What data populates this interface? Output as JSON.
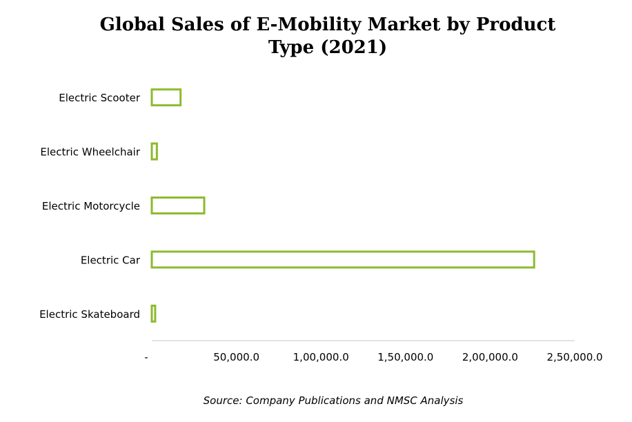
{
  "chart_data": {
    "type": "bar",
    "orientation": "horizontal",
    "title": "Global Sales of E-Mobility Market by Product Type (2021)",
    "categories": [
      "Electric Scooter",
      "Electric Wheelchair",
      "Electric Motorcycle",
      "Electric Car",
      "Electric Skateboard"
    ],
    "values": [
      17000,
      3000,
      31000,
      226000,
      2000
    ],
    "xlim": [
      0,
      250000
    ],
    "x_ticks": [
      0,
      50000,
      100000,
      150000,
      200000,
      250000
    ],
    "x_tick_labels": [
      "-",
      "50,000.0",
      "1,00,000.0",
      "1,50,000.0",
      "2,00,000.0",
      "2,50,000.0"
    ],
    "xlabel": "",
    "ylabel": "",
    "grid": false,
    "legend": "none",
    "bar_style": "outline",
    "bar_color": "#8dba2f"
  },
  "source": "Source: Company Publications and NMSC Analysis"
}
